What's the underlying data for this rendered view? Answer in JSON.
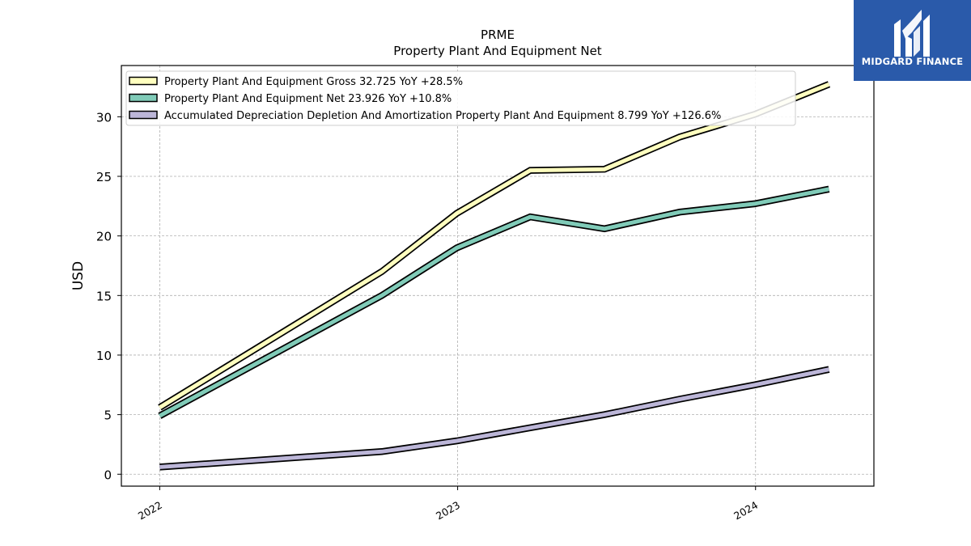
{
  "brand": {
    "name": "MIDGARD FINANCE",
    "color": "#2a5aaa"
  },
  "chart_data": {
    "type": "line",
    "title": "PRME",
    "subtitle": "Property Plant And Equipment Net",
    "xlabel": "",
    "ylabel": "USD",
    "xlim": [
      "2021-11-15",
      "2024-05-25"
    ],
    "ylim": [
      -1,
      34.3
    ],
    "x_ticks": [
      "2022",
      "2023",
      "2024"
    ],
    "y_ticks": [
      0,
      5,
      10,
      15,
      20,
      25,
      30
    ],
    "grid": true,
    "legend_position": "top-left",
    "series": [
      {
        "name": "Property Plant And Equipment Gross",
        "legend": "Property Plant And Equipment Gross  32.725 YoY +28.5%",
        "color": "#ffffbf",
        "x": [
          "2022-01-01",
          "2022-09-30",
          "2022-12-31",
          "2023-03-31",
          "2023-06-30",
          "2023-09-30",
          "2023-12-31",
          "2024-03-31"
        ],
        "values": [
          5.6,
          17.0,
          21.9,
          25.5,
          25.6,
          28.3,
          30.2,
          32.725
        ]
      },
      {
        "name": "Property Plant And Equipment Net",
        "legend": "Property Plant And Equipment Net  23.926 YoY +10.8%",
        "color": "#80cbb8",
        "x": [
          "2022-01-01",
          "2022-09-30",
          "2022-12-31",
          "2023-03-31",
          "2023-06-30",
          "2023-09-30",
          "2023-12-31",
          "2024-03-31"
        ],
        "values": [
          4.9,
          15.0,
          19.0,
          21.6,
          20.6,
          22.0,
          22.7,
          23.926
        ]
      },
      {
        "name": "Accumulated Depreciation Depletion And Amortization Property Plant And Equipment",
        "legend": "Accumulated Depreciation Depletion And Amortization Property Plant And Equipment  8.799 YoY +126.6%",
        "color": "#bcb6d8",
        "x": [
          "2022-01-01",
          "2022-09-30",
          "2022-12-31",
          "2023-03-31",
          "2023-06-30",
          "2023-09-30",
          "2023-12-31",
          "2024-03-31"
        ],
        "values": [
          0.6,
          1.9,
          2.8,
          3.9,
          5.0,
          6.3,
          7.5,
          8.799
        ]
      }
    ]
  }
}
